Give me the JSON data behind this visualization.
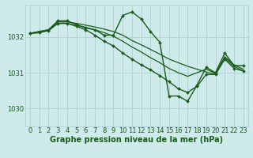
{
  "background_color": "#ceeaea",
  "grid_color": "#aacccc",
  "line_color": "#1a5c1a",
  "marker_color": "#1a5c1a",
  "xlabel": "Graphe pression niveau de la mer (hPa)",
  "xlabel_fontsize": 7,
  "tick_fontsize": 6,
  "yticks": [
    1030,
    1031,
    1032
  ],
  "ylim": [
    1029.5,
    1032.9
  ],
  "xlim": [
    -0.5,
    23.5
  ],
  "xticks": [
    0,
    1,
    2,
    3,
    4,
    5,
    6,
    7,
    8,
    9,
    10,
    11,
    12,
    13,
    14,
    15,
    16,
    17,
    18,
    19,
    20,
    21,
    22,
    23
  ],
  "series": [
    {
      "y": [
        1032.1,
        1032.15,
        1032.2,
        1032.45,
        1032.45,
        1032.35,
        1032.25,
        1032.2,
        1032.05,
        1032.05,
        1032.6,
        1032.7,
        1032.5,
        1032.15,
        1031.85,
        1030.35,
        1030.35,
        1030.2,
        1030.65,
        1031.15,
        1031.0,
        1031.55,
        1031.2,
        1031.2
      ],
      "marker": true,
      "linewidth": 1.0
    },
    {
      "y": [
        1032.1,
        1032.15,
        1032.2,
        1032.42,
        1032.42,
        1032.38,
        1032.33,
        1032.28,
        1032.22,
        1032.15,
        1032.05,
        1031.9,
        1031.78,
        1031.65,
        1031.52,
        1031.38,
        1031.28,
        1031.18,
        1031.1,
        1031.02,
        1030.95,
        1031.45,
        1031.22,
        1031.1
      ],
      "marker": false,
      "linewidth": 0.9
    },
    {
      "y": [
        1032.1,
        1032.12,
        1032.18,
        1032.38,
        1032.38,
        1032.32,
        1032.27,
        1032.2,
        1032.12,
        1032.02,
        1031.88,
        1031.72,
        1031.58,
        1031.42,
        1031.28,
        1031.12,
        1031.0,
        1030.9,
        1031.0,
        1031.1,
        1030.98,
        1031.42,
        1031.18,
        1031.05
      ],
      "marker": false,
      "linewidth": 0.9
    },
    {
      "y": [
        1032.1,
        1032.12,
        1032.18,
        1032.38,
        1032.38,
        1032.3,
        1032.2,
        1032.05,
        1031.88,
        1031.75,
        1031.55,
        1031.38,
        1031.22,
        1031.08,
        1030.92,
        1030.75,
        1030.55,
        1030.45,
        1030.62,
        1030.95,
        1030.95,
        1031.38,
        1031.12,
        1031.05
      ],
      "marker": true,
      "linewidth": 1.0
    }
  ]
}
